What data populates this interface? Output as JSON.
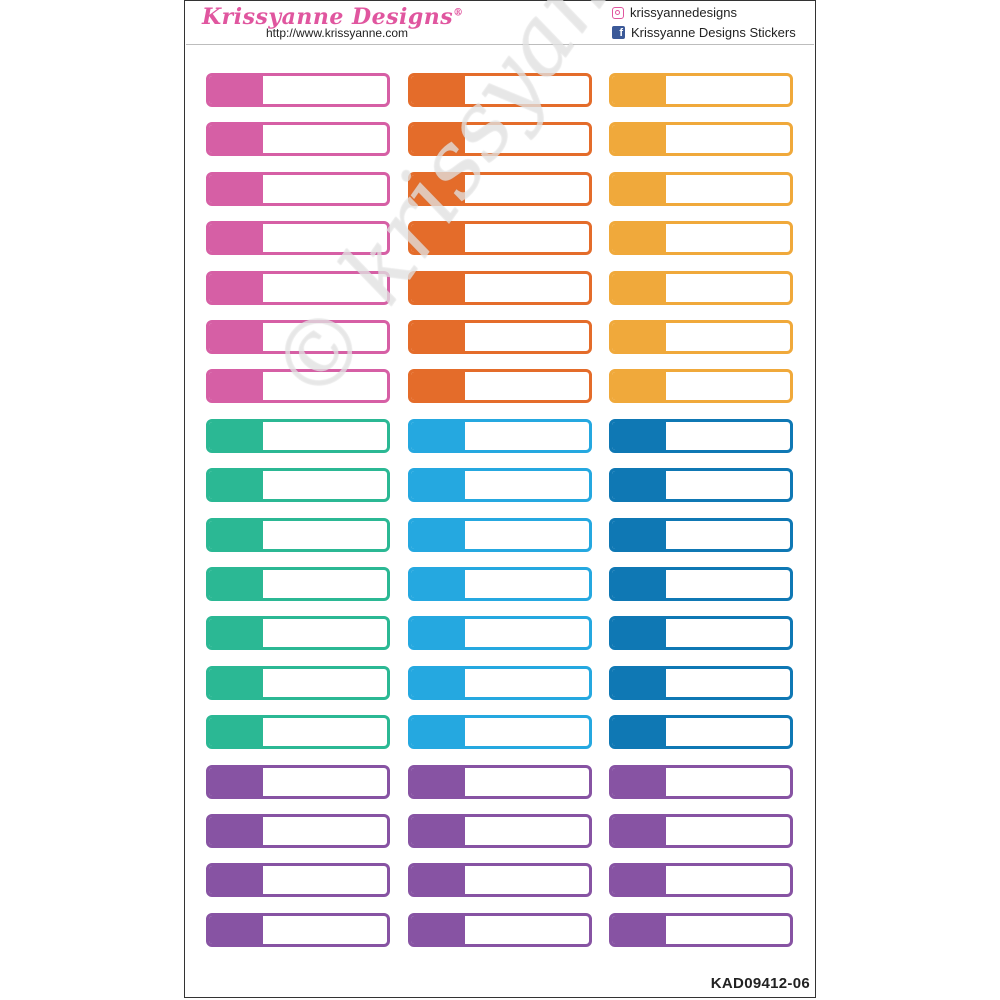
{
  "header": {
    "brand": "Krissyanne Designs",
    "trademark": "®",
    "url": "http://www.krissyanne.com",
    "instagram": "krissyannedesigns",
    "facebook": "Krissyanne Designs Stickers"
  },
  "watermark": "© krissyannedesigns",
  "product_code": "KAD09412-06",
  "colors": {
    "pink": "#d65fa5",
    "orange": "#e46c2a",
    "yellow": "#f0a93b",
    "teal": "#2bb894",
    "sky": "#25a8e0",
    "blue": "#0f78b4",
    "purple": "#8753a3"
  },
  "grid": [
    [
      "pink",
      "orange",
      "yellow"
    ],
    [
      "pink",
      "orange",
      "yellow"
    ],
    [
      "pink",
      "orange",
      "yellow"
    ],
    [
      "pink",
      "orange",
      "yellow"
    ],
    [
      "pink",
      "orange",
      "yellow"
    ],
    [
      "pink",
      "orange",
      "yellow"
    ],
    [
      "pink",
      "orange",
      "yellow"
    ],
    [
      "teal",
      "sky",
      "blue"
    ],
    [
      "teal",
      "sky",
      "blue"
    ],
    [
      "teal",
      "sky",
      "blue"
    ],
    [
      "teal",
      "sky",
      "blue"
    ],
    [
      "teal",
      "sky",
      "blue"
    ],
    [
      "teal",
      "sky",
      "blue"
    ],
    [
      "teal",
      "sky",
      "blue"
    ],
    [
      "purple",
      "purple",
      "purple"
    ],
    [
      "purple",
      "purple",
      "purple"
    ],
    [
      "purple",
      "purple",
      "purple"
    ],
    [
      "purple",
      "purple",
      "purple"
    ]
  ]
}
